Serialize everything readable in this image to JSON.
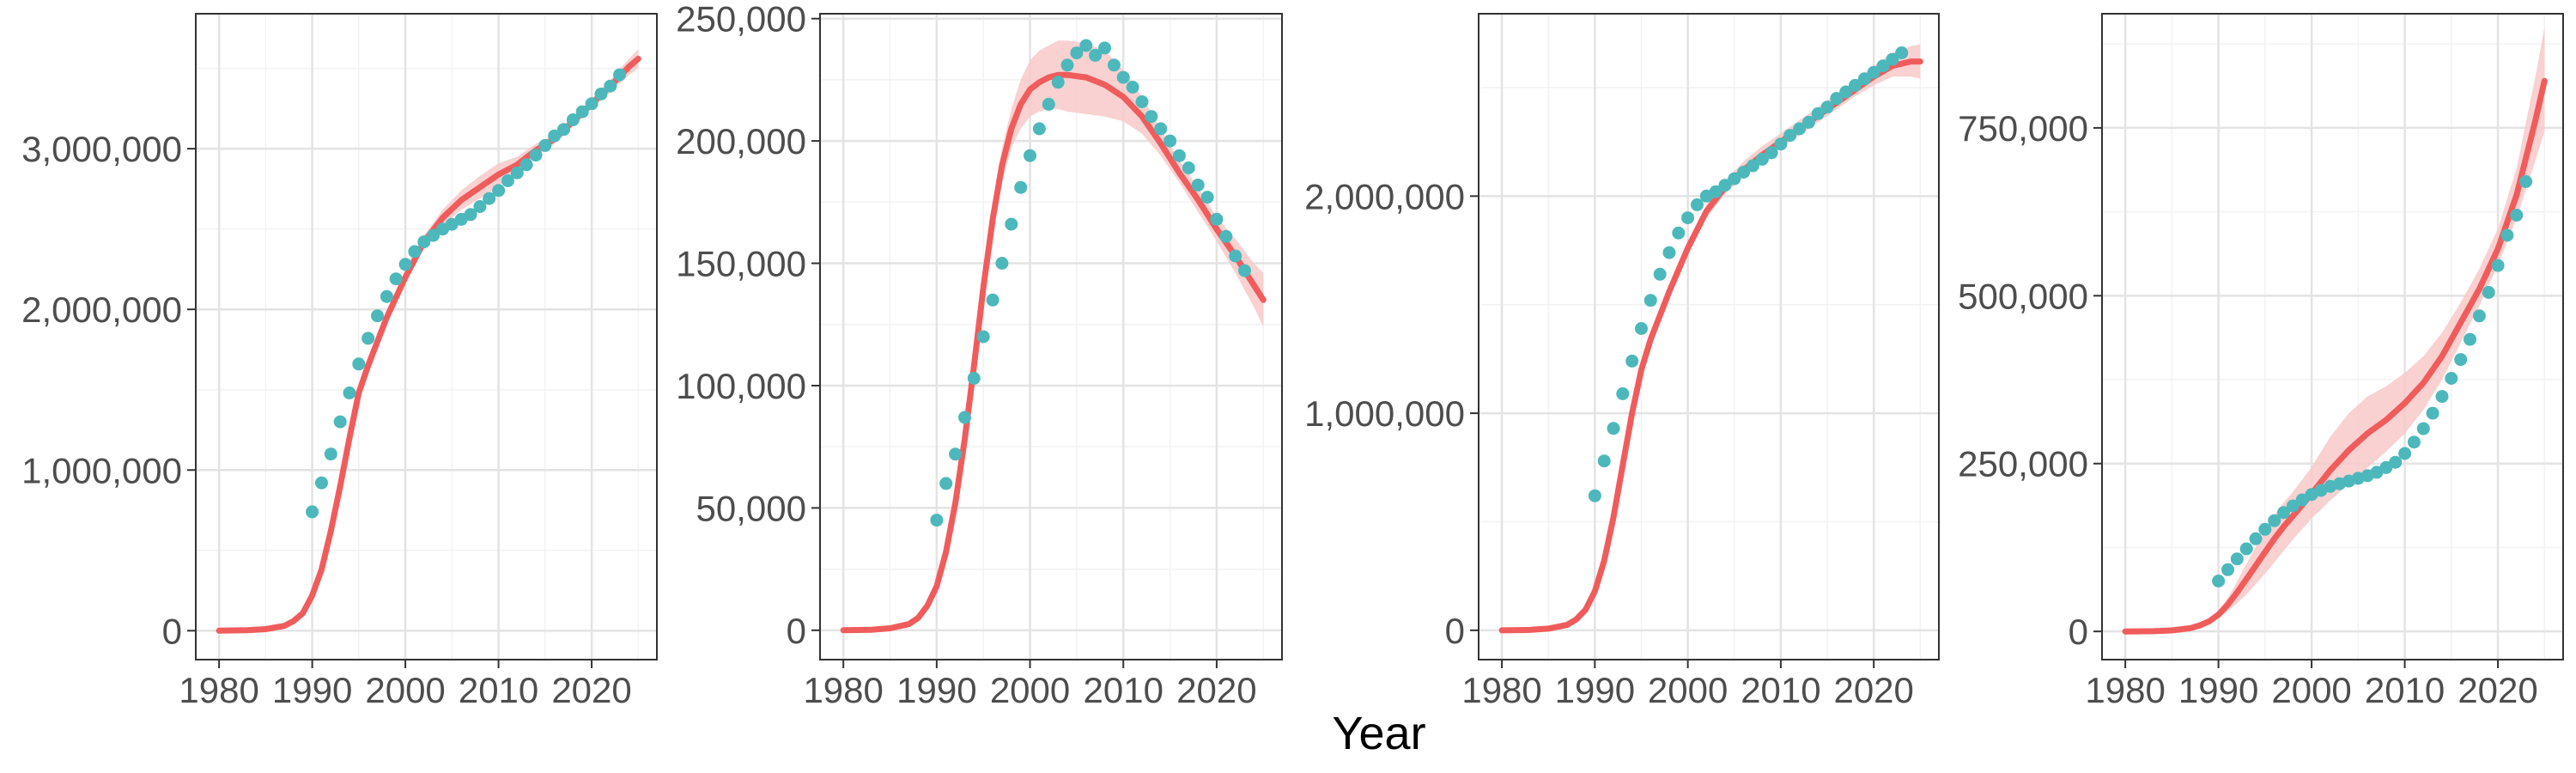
{
  "figure": {
    "xlabel": "Year"
  },
  "chart_data": [
    {
      "type": "line",
      "xlim": [
        1977.5,
        2027
      ],
      "ylim": [
        -180000,
        3840000
      ],
      "x_ticks": [
        1980,
        1990,
        2000,
        2010,
        2020
      ],
      "x_tick_labels": [
        "1980",
        "1990",
        "2000",
        "2010",
        "2020"
      ],
      "y_ticks": [
        0,
        1000000,
        2000000,
        3000000
      ],
      "y_tick_labels": [
        "0",
        "1,000,000",
        "2,000,000",
        "3,000,000"
      ],
      "grid": true,
      "colors": {
        "line": "#f05c5c",
        "band": "#f8c9c9",
        "points": "#4cb8bb"
      },
      "fitted": {
        "x": [
          1980,
          1983,
          1985,
          1987,
          1988,
          1989,
          1990,
          1991,
          1992,
          1993,
          1994,
          1995,
          1996,
          1998,
          2000,
          2002,
          2004,
          2006,
          2008,
          2010,
          2012,
          2014,
          2016,
          2018,
          2020,
          2022,
          2024,
          2025
        ],
        "y": [
          0,
          3000,
          10000,
          30000,
          60000,
          110000,
          220000,
          380000,
          620000,
          900000,
          1200000,
          1480000,
          1650000,
          1950000,
          2200000,
          2420000,
          2570000,
          2680000,
          2760000,
          2840000,
          2900000,
          2990000,
          3060000,
          3170000,
          3280000,
          3390000,
          3510000,
          3560000
        ],
        "lower": [
          0,
          3000,
          10000,
          30000,
          60000,
          110000,
          215000,
          370000,
          600000,
          870000,
          1160000,
          1440000,
          1610000,
          1910000,
          2160000,
          2380000,
          2520000,
          2620000,
          2690000,
          2770000,
          2850000,
          2950000,
          3030000,
          3140000,
          3250000,
          3350000,
          3460000,
          3500000
        ],
        "upper": [
          0,
          3000,
          10000,
          30000,
          60000,
          110000,
          225000,
          390000,
          640000,
          930000,
          1240000,
          1520000,
          1690000,
          1990000,
          2240000,
          2460000,
          2620000,
          2740000,
          2830000,
          2910000,
          2950000,
          3030000,
          3090000,
          3200000,
          3310000,
          3430000,
          3560000,
          3620000
        ]
      },
      "observed": {
        "x": [
          1990,
          1991,
          1992,
          1993,
          1994,
          1995,
          1996,
          1997,
          1998,
          1999,
          2000,
          2001,
          2002,
          2003,
          2004,
          2005,
          2006,
          2007,
          2008,
          2009,
          2010,
          2011,
          2012,
          2013,
          2014,
          2015,
          2016,
          2017,
          2018,
          2019,
          2020,
          2021,
          2022,
          2023
        ],
        "y": [
          740000,
          920000,
          1100000,
          1300000,
          1480000,
          1660000,
          1820000,
          1960000,
          2080000,
          2190000,
          2280000,
          2360000,
          2420000,
          2460000,
          2500000,
          2530000,
          2560000,
          2590000,
          2640000,
          2690000,
          2740000,
          2800000,
          2850000,
          2900000,
          2960000,
          3020000,
          3080000,
          3120000,
          3180000,
          3230000,
          3280000,
          3340000,
          3390000,
          3460000
        ]
      }
    },
    {
      "type": "line",
      "xlim": [
        1977.5,
        2027
      ],
      "ylim": [
        -12000,
        252000
      ],
      "x_ticks": [
        1980,
        1990,
        2000,
        2010,
        2020
      ],
      "x_tick_labels": [
        "1980",
        "1990",
        "2000",
        "2010",
        "2020"
      ],
      "y_ticks": [
        0,
        50000,
        100000,
        150000,
        200000,
        250000
      ],
      "y_tick_labels": [
        "0",
        "50,000",
        "100,000",
        "150,000",
        "200,000",
        "250,000"
      ],
      "grid": true,
      "colors": {
        "line": "#f05c5c",
        "band": "#f8c9c9",
        "points": "#4cb8bb"
      },
      "fitted": {
        "x": [
          1980,
          1983,
          1985,
          1987,
          1988,
          1989,
          1990,
          1991,
          1992,
          1993,
          1994,
          1995,
          1996,
          1997,
          1998,
          1999,
          2000,
          2001,
          2002,
          2003,
          2004,
          2006,
          2008,
          2010,
          2012,
          2014,
          2016,
          2018,
          2020,
          2022,
          2024,
          2025
        ],
        "y": [
          0,
          200,
          800,
          2500,
          5000,
          10000,
          18000,
          32000,
          52000,
          78000,
          108000,
          140000,
          168000,
          190000,
          205000,
          215000,
          221000,
          224000,
          226000,
          227000,
          227000,
          226000,
          223000,
          218000,
          210000,
          199000,
          187000,
          176000,
          164000,
          153000,
          141000,
          135000
        ],
        "lower": [
          0,
          200,
          800,
          2500,
          5000,
          10000,
          17500,
          31000,
          50000,
          75000,
          104000,
          135000,
          162000,
          183000,
          197000,
          205000,
          210000,
          212000,
          213000,
          213000,
          212000,
          211000,
          210000,
          208000,
          203000,
          194000,
          183000,
          171000,
          159000,
          146000,
          132000,
          124000
        ],
        "upper": [
          0,
          200,
          800,
          2500,
          5000,
          10000,
          18500,
          33000,
          54000,
          81000,
          112000,
          145000,
          174000,
          197000,
          213000,
          225000,
          233000,
          237000,
          239000,
          241000,
          241000,
          240000,
          237000,
          229000,
          218000,
          205000,
          192000,
          181000,
          169000,
          160000,
          150000,
          146000
        ]
      },
      "observed": {
        "x": [
          1990,
          1991,
          1992,
          1993,
          1994,
          1995,
          1996,
          1997,
          1998,
          1999,
          2000,
          2001,
          2002,
          2003,
          2004,
          2005,
          2006,
          2007,
          2008,
          2009,
          2010,
          2011,
          2012,
          2013,
          2014,
          2015,
          2016,
          2017,
          2018,
          2019,
          2020,
          2021,
          2022,
          2023
        ],
        "y": [
          45000,
          60000,
          72000,
          87000,
          103000,
          120000,
          135000,
          150000,
          166000,
          181000,
          194000,
          205000,
          215000,
          224000,
          231000,
          236000,
          239000,
          235000,
          238000,
          231000,
          226000,
          222000,
          216000,
          210000,
          205000,
          200000,
          194000,
          189000,
          182000,
          177000,
          168000,
          161000,
          153000,
          147000
        ]
      }
    },
    {
      "type": "line",
      "xlim": [
        1977.5,
        2027
      ],
      "ylim": [
        -135000,
        2840000
      ],
      "x_ticks": [
        1980,
        1990,
        2000,
        2010,
        2020
      ],
      "x_tick_labels": [
        "1980",
        "1990",
        "2000",
        "2010",
        "2020"
      ],
      "y_ticks": [
        0,
        1000000,
        2000000
      ],
      "y_tick_labels": [
        "0",
        "1,000,000",
        "2,000,000"
      ],
      "grid": true,
      "colors": {
        "line": "#f05c5c",
        "band": "#f8c9c9",
        "points": "#4cb8bb"
      },
      "fitted": {
        "x": [
          1980,
          1983,
          1985,
          1987,
          1988,
          1989,
          1990,
          1991,
          1992,
          1993,
          1994,
          1995,
          1996,
          1998,
          2000,
          2002,
          2004,
          2006,
          2008,
          2010,
          2012,
          2014,
          2016,
          2018,
          2020,
          2022,
          2024,
          2025
        ],
        "y": [
          0,
          2000,
          8000,
          25000,
          50000,
          95000,
          180000,
          320000,
          520000,
          760000,
          1000000,
          1200000,
          1340000,
          1560000,
          1760000,
          1930000,
          2040000,
          2120000,
          2190000,
          2250000,
          2310000,
          2370000,
          2430000,
          2490000,
          2550000,
          2600000,
          2620000,
          2620000
        ],
        "lower": [
          0,
          2000,
          8000,
          25000,
          50000,
          95000,
          175000,
          310000,
          505000,
          740000,
          975000,
          1170000,
          1310000,
          1530000,
          1730000,
          1900000,
          2010000,
          2090000,
          2160000,
          2220000,
          2280000,
          2340000,
          2400000,
          2460000,
          2510000,
          2550000,
          2550000,
          2540000
        ],
        "upper": [
          0,
          2000,
          8000,
          25000,
          50000,
          95000,
          185000,
          330000,
          535000,
          780000,
          1025000,
          1230000,
          1370000,
          1590000,
          1790000,
          1960000,
          2070000,
          2160000,
          2230000,
          2290000,
          2350000,
          2410000,
          2470000,
          2530000,
          2600000,
          2660000,
          2690000,
          2700000
        ]
      },
      "observed": {
        "x": [
          1990,
          1991,
          1992,
          1993,
          1994,
          1995,
          1996,
          1997,
          1998,
          1999,
          2000,
          2001,
          2002,
          2003,
          2004,
          2005,
          2006,
          2007,
          2008,
          2009,
          2010,
          2011,
          2012,
          2013,
          2014,
          2015,
          2016,
          2017,
          2018,
          2019,
          2020,
          2021,
          2022,
          2023
        ],
        "y": [
          620000,
          780000,
          930000,
          1090000,
          1240000,
          1390000,
          1520000,
          1640000,
          1740000,
          1830000,
          1900000,
          1960000,
          2000000,
          2020000,
          2050000,
          2080000,
          2110000,
          2140000,
          2170000,
          2200000,
          2240000,
          2280000,
          2310000,
          2340000,
          2380000,
          2410000,
          2450000,
          2480000,
          2510000,
          2540000,
          2570000,
          2600000,
          2630000,
          2660000
        ]
      }
    },
    {
      "type": "line",
      "xlim": [
        1977.5,
        2027
      ],
      "ylim": [
        -42000,
        920000
      ],
      "x_ticks": [
        1980,
        1990,
        2000,
        2010,
        2020
      ],
      "x_tick_labels": [
        "1980",
        "1990",
        "2000",
        "2010",
        "2020"
      ],
      "y_ticks": [
        0,
        250000,
        500000,
        750000
      ],
      "y_tick_labels": [
        "0",
        "250,000",
        "500,000",
        "750,000"
      ],
      "grid": true,
      "colors": {
        "line": "#f05c5c",
        "band": "#f8c9c9",
        "points": "#4cb8bb"
      },
      "fitted": {
        "x": [
          1980,
          1983,
          1985,
          1987,
          1988,
          1989,
          1990,
          1991,
          1992,
          1993,
          1994,
          1995,
          1996,
          1997,
          1998,
          2000,
          2002,
          2004,
          2006,
          2008,
          2010,
          2012,
          2014,
          2016,
          2018,
          2020,
          2022,
          2024,
          2025
        ],
        "y": [
          0,
          300,
          1500,
          5000,
          9000,
          15000,
          25000,
          40000,
          58000,
          78000,
          98000,
          118000,
          138000,
          156000,
          172000,
          205000,
          240000,
          270000,
          295000,
          315000,
          340000,
          370000,
          410000,
          460000,
          510000,
          570000,
          650000,
          760000,
          820000
        ],
        "lower": [
          0,
          300,
          1500,
          5000,
          9000,
          13000,
          20000,
          30000,
          42000,
          55000,
          70000,
          86000,
          103000,
          120000,
          137000,
          168000,
          195000,
          220000,
          244000,
          268000,
          295000,
          330000,
          375000,
          430000,
          485000,
          545000,
          615000,
          700000,
          745000
        ],
        "upper": [
          0,
          300,
          1500,
          5000,
          9000,
          17000,
          30000,
          50000,
          74000,
          101000,
          126000,
          150000,
          173000,
          192000,
          208000,
          245000,
          290000,
          325000,
          350000,
          365000,
          385000,
          410000,
          445000,
          490000,
          540000,
          600000,
          690000,
          825000,
          900000
        ]
      },
      "observed": {
        "x": [
          1990,
          1991,
          1992,
          1993,
          1994,
          1995,
          1996,
          1997,
          1998,
          1999,
          2000,
          2001,
          2002,
          2003,
          2004,
          2005,
          2006,
          2007,
          2008,
          2009,
          2010,
          2011,
          2012,
          2013,
          2014,
          2015,
          2016,
          2017,
          2018,
          2019,
          2020,
          2021,
          2022,
          2023
        ],
        "y": [
          75000,
          92000,
          108000,
          123000,
          138000,
          152000,
          165000,
          177000,
          187000,
          196000,
          204000,
          210000,
          216000,
          220000,
          224000,
          228000,
          232000,
          237000,
          244000,
          252000,
          265000,
          282000,
          302000,
          325000,
          350000,
          377000,
          405000,
          435000,
          470000,
          505000,
          545000,
          590000,
          620000,
          670000
        ]
      }
    }
  ]
}
